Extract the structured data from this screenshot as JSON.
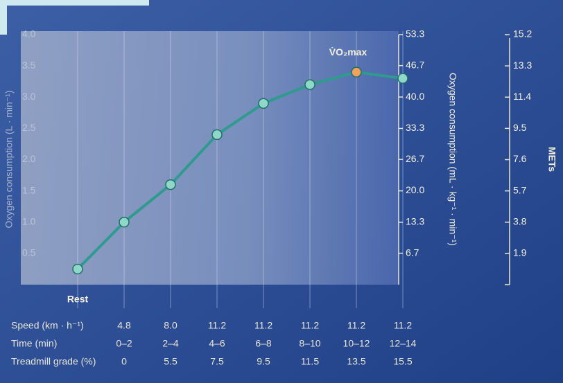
{
  "chart_data": {
    "type": "line",
    "annotation": "V̇O₂max",
    "ylabel": "Oxygen consumption (L · min⁻¹)",
    "y2label": "Oxygen consumption (mL · kg⁻¹ · min⁻¹)",
    "y3label": "METs",
    "categories": [
      "Rest",
      null,
      null,
      null,
      null,
      null,
      null,
      null
    ],
    "series": [
      {
        "name": null,
        "color": "#2e9b8e",
        "values": [
          0.25,
          1.0,
          1.6,
          2.4,
          2.9,
          3.2,
          3.4,
          3.3
        ]
      }
    ],
    "peak_color": "#f5a15a",
    "ylim": [
      0,
      4
    ],
    "yticks": [
      {
        "value": 0.5,
        "label": "0.5"
      },
      {
        "value": 1,
        "label": "1.0"
      },
      1.5,
      {
        "value": 2,
        "label": "2.0"
      },
      2.5,
      {
        "value": 3,
        "label": "3.0"
      },
      3.5,
      {
        "value": 4,
        "label": "4.0"
      }
    ],
    "y2lim": [
      0,
      53.3
    ],
    "y2ticks": [
      6.7,
      13.3,
      {
        "value": 20,
        "label": "20.0"
      },
      26.7,
      33.3,
      {
        "value": 40,
        "label": "40.0"
      },
      46.7,
      53.3
    ],
    "y3lim": [
      0,
      15.2
    ],
    "y3ticks": [
      1.9,
      3.8,
      5.7,
      7.6,
      9.5,
      11.4,
      13.3,
      15.2
    ],
    "table": {
      "rows": [
        {
          "label": "Speed (km · h⁻¹)",
          "values": [
            "4.8",
            "8.0",
            "11.2",
            "11.2",
            "11.2",
            "11.2",
            "11.2"
          ]
        },
        {
          "label": "Time (min)",
          "values": [
            "0–2",
            "2–4",
            "4–6",
            "6–8",
            "8–10",
            "10–12",
            "12–14"
          ]
        },
        {
          "label": "Treadmill grade (%)",
          "values": [
            "0",
            "5.5",
            "7.5",
            "9.5",
            "11.5",
            "13.5",
            "15.5"
          ]
        }
      ]
    }
  }
}
